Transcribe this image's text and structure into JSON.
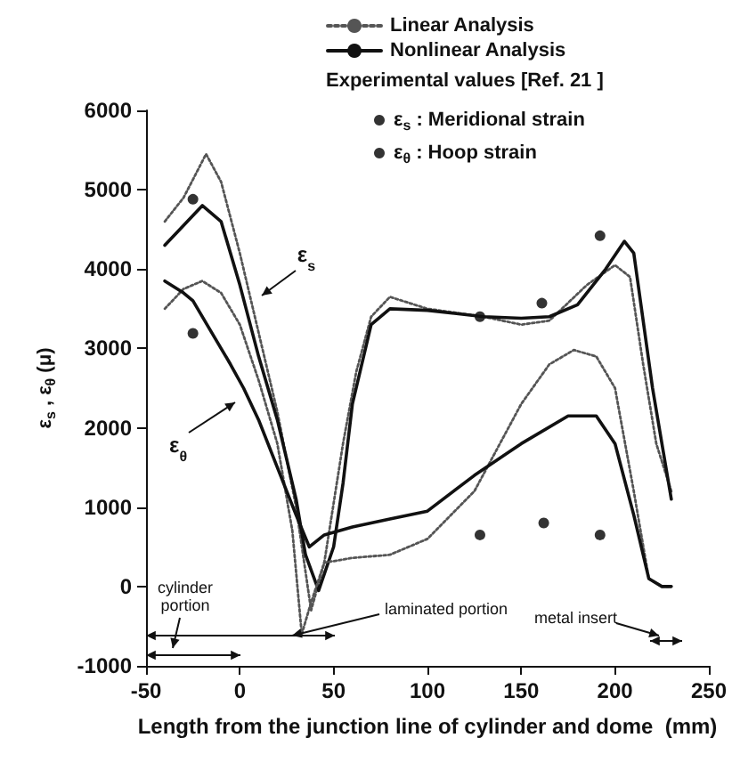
{
  "chart_data": {
    "type": "line",
    "xlabel": "Length from the junction line of cylinder and dome  (mm)",
    "ylabel": "ε$_{s}$ , ε$_{θ}$ (μ)",
    "legend_title": "Experimental values [Ref. 21 ]",
    "legend": "top right",
    "grid": false,
    "xlim": [
      -50,
      250
    ],
    "xticks": [
      -50,
      0,
      50,
      100,
      150,
      200,
      250
    ],
    "ylim": [
      -1000,
      6000
    ],
    "yticks": [
      -1000,
      0,
      1000,
      2000,
      3000,
      4000,
      5000,
      6000
    ],
    "series": [
      {
        "name": "Linear Analysis",
        "color": "#555555",
        "line_style": "dotted",
        "x": [
          -40,
          -30,
          -18,
          -10,
          0,
          10,
          20,
          30,
          38,
          45,
          55,
          62,
          70,
          80,
          100,
          130,
          150,
          165,
          185,
          200,
          208,
          215,
          222,
          230
        ],
        "values": [
          4600,
          4900,
          5450,
          5100,
          4200,
          3200,
          2200,
          1000,
          -300,
          300,
          1800,
          2700,
          3400,
          3650,
          3500,
          3400,
          3300,
          3350,
          3800,
          4050,
          3900,
          2800,
          1800,
          1200
        ]
      },
      {
        "name": "Nonlinear Analysis",
        "color": "#111111",
        "line_style": "solid",
        "x": [
          -40,
          -30,
          -20,
          -10,
          0,
          10,
          20,
          30,
          35,
          42,
          50,
          55,
          60,
          70,
          80,
          100,
          130,
          150,
          165,
          180,
          195,
          205,
          210,
          220,
          230
        ],
        "values": [
          4300,
          4550,
          4800,
          4600,
          3800,
          2900,
          2100,
          1100,
          400,
          -50,
          500,
          1300,
          2300,
          3300,
          3500,
          3480,
          3400,
          3380,
          3400,
          3550,
          4000,
          4350,
          4200,
          2500,
          1100
        ]
      },
      {
        "color": "#555555",
        "line_style": "dotted",
        "x": [
          -40,
          -30,
          -20,
          -10,
          0,
          10,
          20,
          28,
          33,
          38,
          45,
          60,
          80,
          100,
          125,
          150,
          165,
          178,
          190,
          200,
          210,
          218,
          225,
          230
        ],
        "values": [
          3500,
          3750,
          3850,
          3700,
          3300,
          2600,
          1800,
          700,
          -600,
          -200,
          300,
          360,
          400,
          600,
          1200,
          2300,
          2800,
          2980,
          2900,
          2500,
          1200,
          100,
          0,
          0
        ]
      },
      {
        "color": "#111111",
        "line_style": "solid",
        "x": [
          -40,
          -30,
          -25,
          -15,
          -5,
          2,
          10,
          20,
          30,
          37,
          45,
          60,
          80,
          100,
          125,
          150,
          175,
          190,
          200,
          210,
          218,
          225,
          230
        ],
        "values": [
          3850,
          3700,
          3600,
          3200,
          2800,
          2500,
          2100,
          1500,
          900,
          500,
          650,
          750,
          850,
          950,
          1400,
          1800,
          2150,
          2150,
          1800,
          900,
          100,
          0,
          0
        ]
      },
      {
        "name": "ε$_{s}$ : Meridional strain",
        "type": "scatter",
        "color": "#000000",
        "x": [
          -25,
          128,
          161,
          192
        ],
        "values": [
          4880,
          3400,
          3570,
          4420
        ]
      },
      {
        "name": "ε$_{θ}$ : Hoop strain",
        "type": "scatter",
        "color": "#000000",
        "x": [
          -25,
          128,
          162,
          192
        ],
        "values": [
          3190,
          650,
          800,
          650
        ]
      }
    ],
    "annotations": [
      "ε$_{s}$",
      "ε$_{θ}$",
      "cylinder portion",
      "laminated portion",
      "metal insert"
    ]
  }
}
